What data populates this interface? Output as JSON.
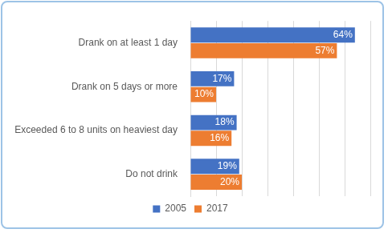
{
  "chart_data": {
    "type": "bar",
    "orientation": "horizontal",
    "categories": [
      "Drank on at least 1 day",
      "Drank on 5 days or more",
      "Exceeded 6 to 8 units on heaviest day",
      "Do not drink"
    ],
    "series": [
      {
        "name": "2005",
        "color": "#4472c4",
        "values": [
          64,
          17,
          18,
          19
        ],
        "value_labels": [
          "64%",
          "17%",
          "18%",
          "19%"
        ]
      },
      {
        "name": "2017",
        "color": "#ed7d31",
        "values": [
          57,
          10,
          16,
          20
        ],
        "value_labels": [
          "57%",
          "10%",
          "16%",
          "20%"
        ]
      }
    ],
    "xlim": [
      0,
      70
    ],
    "xticks": [
      0,
      10,
      20,
      30,
      40,
      50,
      60,
      70
    ],
    "grid": true,
    "legend": "bottom",
    "data_labels": true,
    "tick_labels": "y"
  }
}
